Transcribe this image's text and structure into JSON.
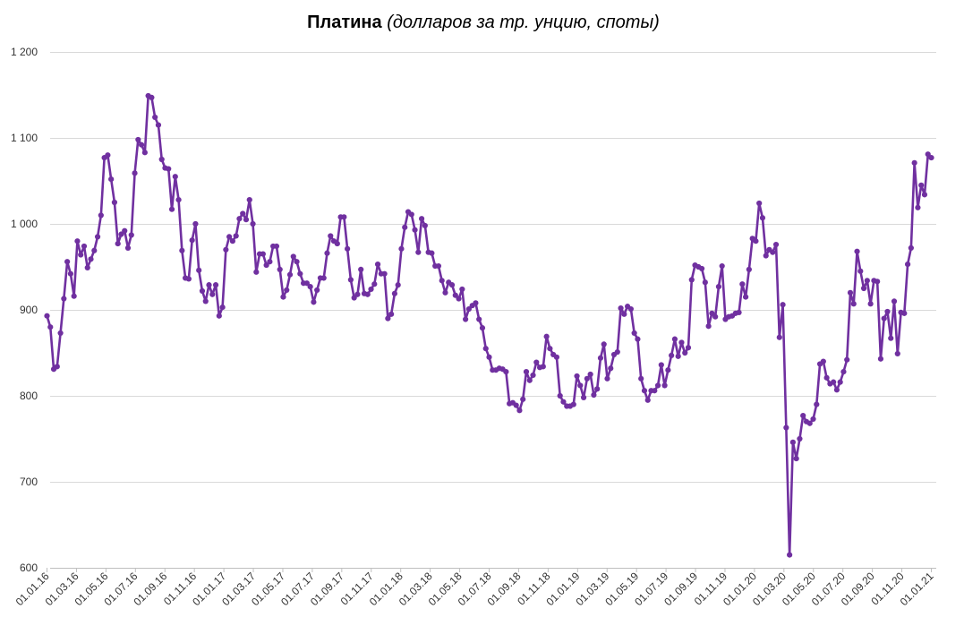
{
  "title": {
    "bold": "Платина",
    "italic": "(долларов за тр. унцию, споты)"
  },
  "chart_data": {
    "type": "line",
    "title": "Платина (долларов за тр. унцию, споты)",
    "xlabel": "",
    "ylabel": "",
    "ylim": [
      600,
      1200
    ],
    "yticks": [
      600,
      700,
      800,
      900,
      1000,
      1100,
      1200
    ],
    "ytick_labels": [
      "600",
      "700",
      "800",
      "900",
      "1 000",
      "1 100",
      "1 200"
    ],
    "xticks": [
      "01.01.16",
      "01.03.16",
      "01.05.16",
      "01.07.16",
      "01.09.16",
      "01.11.16",
      "01.01.17",
      "01.03.17",
      "01.05.17",
      "01.07.17",
      "01.09.17",
      "01.11.17",
      "01.01.18",
      "01.03.18",
      "01.05.18",
      "01.07.18",
      "01.09.18",
      "01.11.18",
      "01.01.19",
      "01.03.19",
      "01.05.19",
      "01.07.19",
      "01.09.19",
      "01.11.19",
      "01.01.20",
      "01.03.20",
      "01.05.20",
      "01.07.20",
      "01.09.20",
      "01.11.20",
      "01.01.21"
    ],
    "grid": true,
    "legend": "none",
    "series": [
      {
        "color": "#7030A0",
        "values": [
          893,
          880,
          831,
          834,
          873,
          913,
          956,
          942,
          916,
          980,
          964,
          974,
          949,
          959,
          969,
          985,
          1010,
          1077,
          1080,
          1052,
          1025,
          977,
          988,
          992,
          972,
          987,
          1059,
          1098,
          1092,
          1083,
          1149,
          1147,
          1124,
          1115,
          1075,
          1065,
          1064,
          1017,
          1055,
          1028,
          969,
          937,
          936,
          981,
          1000,
          946,
          922,
          910,
          929,
          918,
          929,
          893,
          903,
          970,
          985,
          980,
          986,
          1006,
          1012,
          1005,
          1028,
          1000,
          944,
          965,
          965,
          952,
          956,
          974,
          974,
          947,
          915,
          923,
          941,
          962,
          956,
          942,
          931,
          931,
          927,
          909,
          923,
          937,
          937,
          966,
          986,
          980,
          977,
          1008,
          1008,
          971,
          935,
          914,
          918,
          947,
          919,
          918,
          924,
          930,
          953,
          942,
          942,
          890,
          895,
          919,
          929,
          971,
          996,
          1014,
          1011,
          993,
          967,
          1006,
          998,
          967,
          966,
          951,
          951,
          934,
          920,
          932,
          929,
          917,
          913,
          924,
          889,
          901,
          905,
          908,
          889,
          879,
          855,
          845,
          830,
          830,
          832,
          831,
          828,
          791,
          792,
          789,
          783,
          796,
          828,
          818,
          824,
          839,
          833,
          834,
          869,
          855,
          848,
          845,
          800,
          793,
          788,
          788,
          790,
          823,
          812,
          798,
          820,
          825,
          801,
          808,
          844,
          860,
          820,
          832,
          848,
          851,
          902,
          895,
          904,
          901,
          873,
          866,
          820,
          806,
          795,
          806,
          806,
          812,
          836,
          812,
          830,
          847,
          866,
          846,
          862,
          850,
          856,
          935,
          952,
          950,
          948,
          932,
          881,
          896,
          892,
          927,
          951,
          889,
          892,
          893,
          896,
          897,
          930,
          915,
          947,
          983,
          980,
          1024,
          1007,
          963,
          970,
          967,
          976,
          868,
          906,
          763,
          615,
          746,
          727,
          750,
          777,
          770,
          768,
          773,
          790,
          837,
          840,
          821,
          814,
          816,
          807,
          816,
          828,
          842,
          920,
          907,
          968,
          945,
          925,
          934,
          907,
          934,
          933,
          843,
          890,
          898,
          867,
          910,
          849,
          897,
          896,
          953,
          972,
          1071,
          1019,
          1045,
          1034,
          1081,
          1077
        ]
      }
    ]
  }
}
